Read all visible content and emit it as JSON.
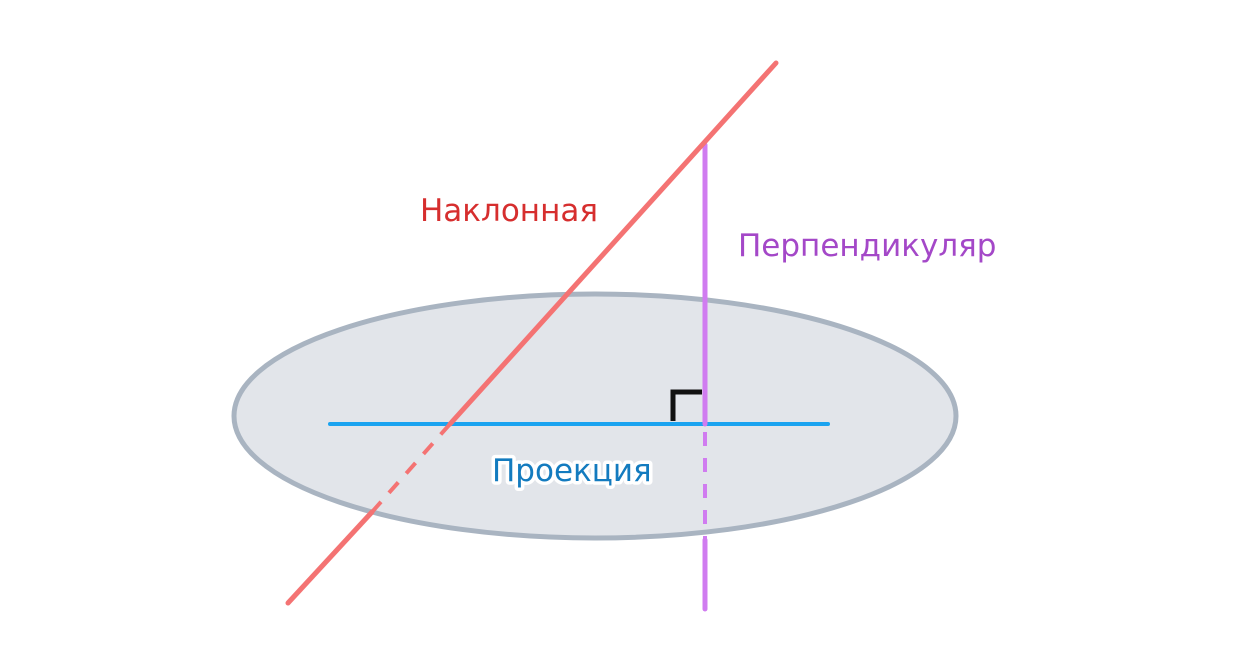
{
  "labels": {
    "oblique": "Наклонная",
    "perpendicular": "Перпендикуляр",
    "projection": "Проекция"
  },
  "colors": {
    "background": "#ffffff",
    "plane_fill": "#e2e5ea",
    "plane_stroke": "#a9b4c1",
    "oblique": "#f47373",
    "oblique_label": "#d62e2e",
    "perpendicular": "#d07cf0",
    "perpendicular_label": "#a448c8",
    "projection": "#1aa3f0",
    "projection_label": "#137bbf",
    "right_angle_mark": "#111111"
  }
}
